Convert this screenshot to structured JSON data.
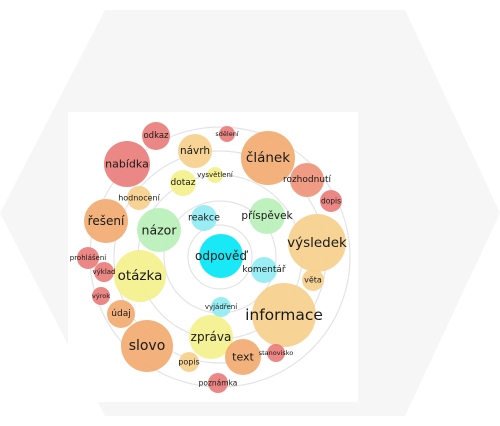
{
  "colors": {
    "background_hexagon": "#f6f6f6",
    "inner_panel": "#ffffff",
    "ring": "#e4e4e4",
    "center": "#00e5f5",
    "cyan": "#8fecf2",
    "green": "#b8efb8",
    "yellow": "#f4f08a",
    "peach": "#f6cf8a",
    "orange": "#f2a96e",
    "salmon": "#ee9077",
    "red": "#e97a77"
  },
  "words": [
    {
      "text": "odpověď",
      "color": "center"
    },
    {
      "text": "reakce",
      "color": "cyan"
    },
    {
      "text": "komentář",
      "color": "cyan"
    },
    {
      "text": "vyjádření",
      "color": "cyan"
    },
    {
      "text": "názor",
      "color": "green"
    },
    {
      "text": "příspěvek",
      "color": "green"
    },
    {
      "text": "dotaz",
      "color": "yellow"
    },
    {
      "text": "vysvětlení",
      "color": "yellow"
    },
    {
      "text": "otázka",
      "color": "yellow"
    },
    {
      "text": "zpráva",
      "color": "yellow"
    },
    {
      "text": "informace",
      "color": "peach"
    },
    {
      "text": "výsledek",
      "color": "peach"
    },
    {
      "text": "věta",
      "color": "peach"
    },
    {
      "text": "návrh",
      "color": "peach"
    },
    {
      "text": "článek",
      "color": "orange"
    },
    {
      "text": "řešení",
      "color": "orange"
    },
    {
      "text": "slovo",
      "color": "orange"
    },
    {
      "text": "text",
      "color": "orange"
    },
    {
      "text": "údaj",
      "color": "orange"
    },
    {
      "text": "hodnocení",
      "color": "peach"
    },
    {
      "text": "popis",
      "color": "peach"
    },
    {
      "text": "nabídka",
      "color": "red"
    },
    {
      "text": "rozhodnutí",
      "color": "salmon"
    },
    {
      "text": "odkaz",
      "color": "red"
    },
    {
      "text": "sdělení",
      "color": "red"
    },
    {
      "text": "dopis",
      "color": "red"
    },
    {
      "text": "prohlášení",
      "color": "red"
    },
    {
      "text": "výklad",
      "color": "red"
    },
    {
      "text": "výrok",
      "color": "red"
    },
    {
      "text": "stanovisko",
      "color": "red"
    },
    {
      "text": "poznámka",
      "color": "red"
    }
  ]
}
